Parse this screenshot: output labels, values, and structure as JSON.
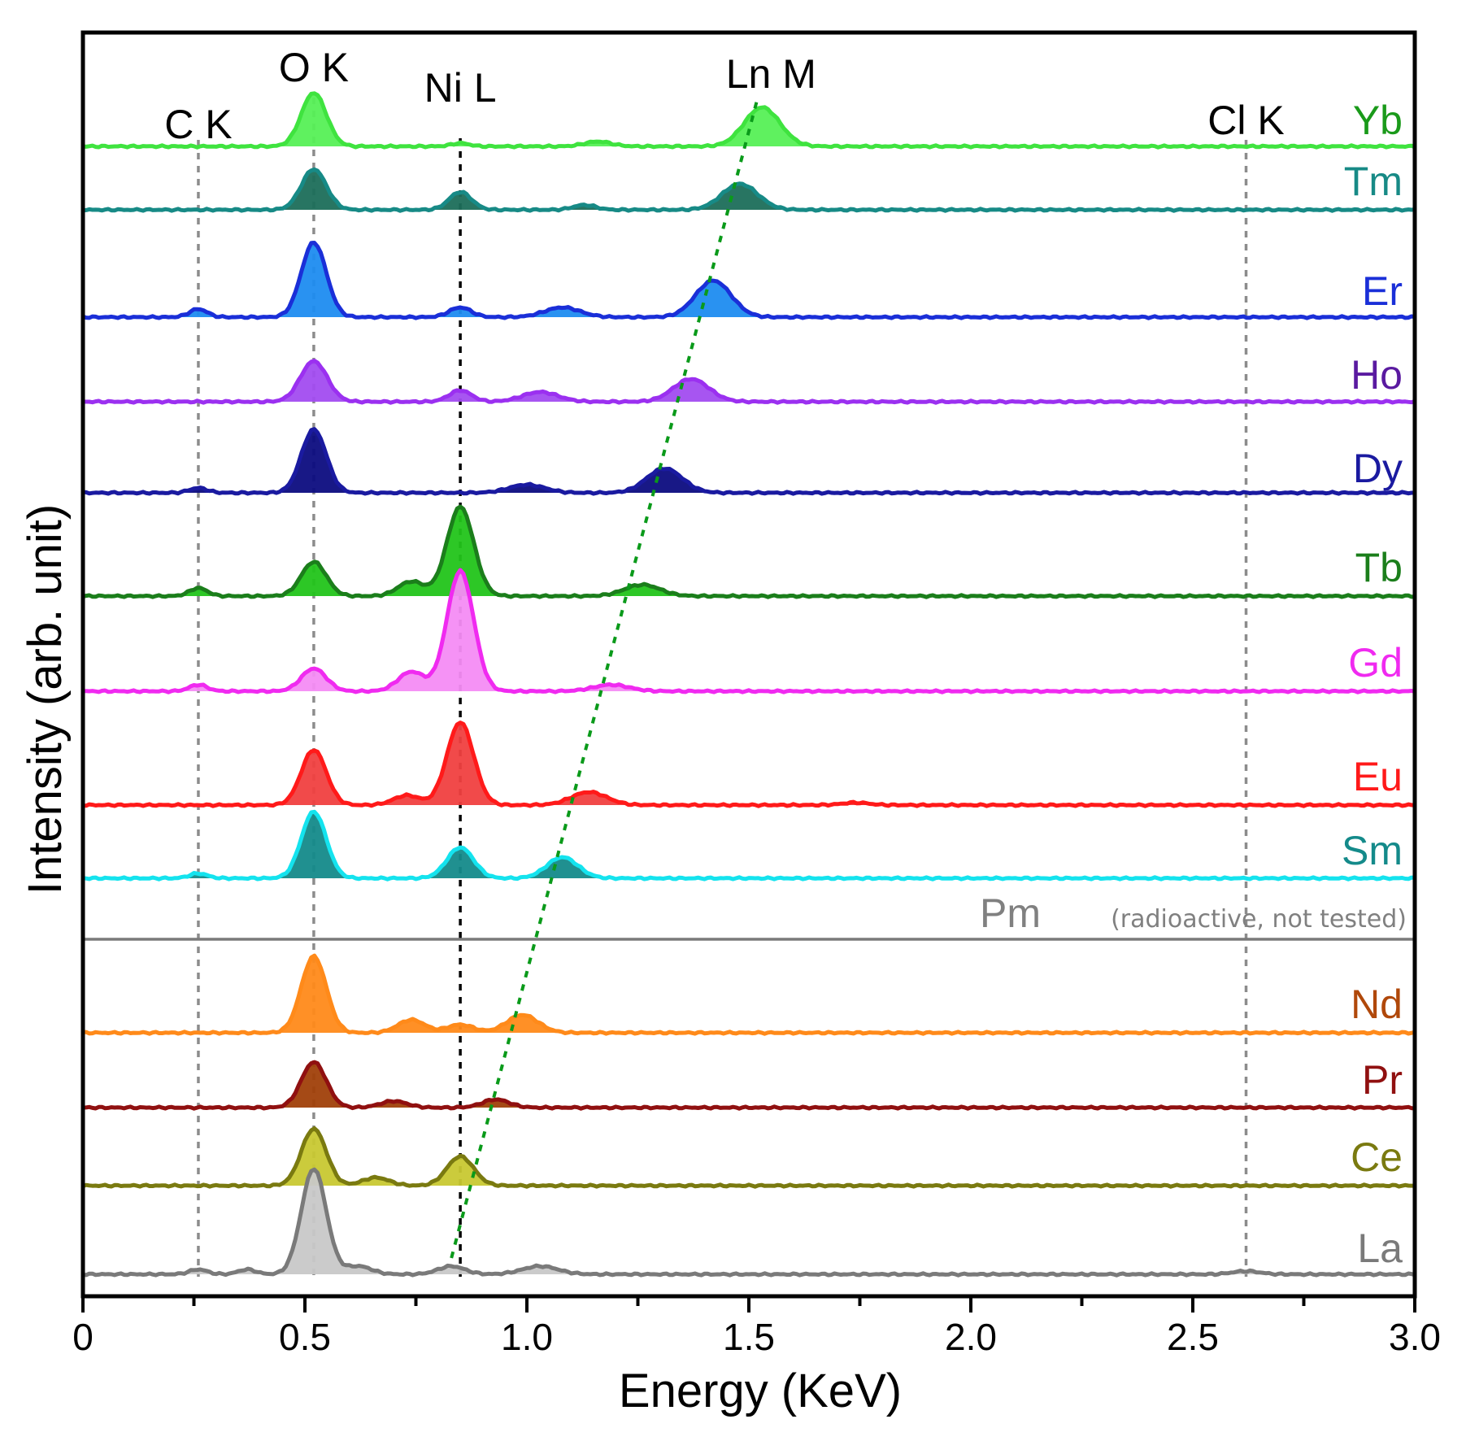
{
  "chart_data": {
    "type": "line",
    "title": "",
    "xlabel": "Energy (KeV)",
    "ylabel": "Intensity (arb. unit)",
    "xlim": [
      0,
      3.0
    ],
    "x_ticks": [
      "0",
      "0.5",
      "1.0",
      "1.5",
      "2.0",
      "2.5",
      "3.0"
    ],
    "x_tick_values": [
      0,
      0.5,
      1.0,
      1.5,
      2.0,
      2.5,
      3.0
    ],
    "reference_lines": [
      {
        "label": "C K",
        "energy": 0.26,
        "color": "#8c8c8c"
      },
      {
        "label": "O K",
        "energy": 0.52,
        "color": "#8c8c8c"
      },
      {
        "label": "Ni L",
        "energy": 0.85,
        "color": "#000000"
      },
      {
        "label": "Cl K",
        "energy": 2.62,
        "color": "#8c8c8c"
      }
    ],
    "ln_m_trend": {
      "label": "Ln M",
      "color": "#0a9a1a",
      "from": {
        "series": "La",
        "energy": 0.83
      },
      "to": {
        "series": "Yb",
        "energy": 1.52
      }
    },
    "series": [
      {
        "name": "Yb",
        "color": "#3fe33f",
        "fill": "#56f056",
        "label_color": "#1a9a1a",
        "baseline": 0,
        "peaks": [
          [
            0.52,
            66,
            0.028
          ],
          [
            0.85,
            4,
            0.02
          ],
          [
            1.16,
            6,
            0.03
          ],
          [
            1.53,
            48,
            0.04
          ]
        ]
      },
      {
        "name": "Tm",
        "color": "#178a86",
        "fill": "#1c6e5a",
        "label_color": "#178a86",
        "baseline": 0,
        "peaks": [
          [
            0.52,
            50,
            0.028
          ],
          [
            0.85,
            22,
            0.025
          ],
          [
            1.13,
            6,
            0.025
          ],
          [
            1.48,
            32,
            0.04
          ]
        ]
      },
      {
        "name": "Er",
        "color": "#1a2fd8",
        "fill": "#1e8cf0",
        "label_color": "#1a2fd8",
        "baseline": 0,
        "peaks": [
          [
            0.26,
            10,
            0.02
          ],
          [
            0.52,
            92,
            0.028
          ],
          [
            0.85,
            12,
            0.025
          ],
          [
            1.08,
            12,
            0.04
          ],
          [
            1.42,
            45,
            0.04
          ]
        ]
      },
      {
        "name": "Ho",
        "color": "#9b30f0",
        "fill": "#a24cf0",
        "label_color": "#5a1aa0",
        "baseline": 0,
        "peaks": [
          [
            0.52,
            50,
            0.03
          ],
          [
            0.85,
            14,
            0.025
          ],
          [
            1.03,
            12,
            0.04
          ],
          [
            1.37,
            28,
            0.04
          ]
        ]
      },
      {
        "name": "Dy",
        "color": "#1a1aa0",
        "fill": "#0c0c80",
        "label_color": "#1a1aa0",
        "baseline": 0,
        "peaks": [
          [
            0.26,
            6,
            0.02
          ],
          [
            0.52,
            78,
            0.028
          ],
          [
            1.0,
            10,
            0.04
          ],
          [
            1.31,
            30,
            0.04
          ]
        ]
      },
      {
        "name": "Tb",
        "color": "#1b7e1b",
        "fill": "#22c41a",
        "label_color": "#1b7e1b",
        "baseline": 0,
        "peaks": [
          [
            0.26,
            10,
            0.02
          ],
          [
            0.52,
            42,
            0.028
          ],
          [
            0.74,
            18,
            0.03
          ],
          [
            0.85,
            110,
            0.03
          ],
          [
            1.26,
            14,
            0.04
          ]
        ]
      },
      {
        "name": "Gd",
        "color": "#f02af0",
        "fill": "#f48cf4",
        "label_color": "#f02af0",
        "baseline": 0,
        "peaks": [
          [
            0.26,
            8,
            0.02
          ],
          [
            0.52,
            28,
            0.028
          ],
          [
            0.74,
            24,
            0.03
          ],
          [
            0.85,
            148,
            0.03
          ],
          [
            1.19,
            8,
            0.04
          ]
        ]
      },
      {
        "name": "Eu",
        "color": "#ff1a1a",
        "fill": "#f04040",
        "label_color": "#ff1a1a",
        "baseline": 0,
        "peaks": [
          [
            0.52,
            68,
            0.028
          ],
          [
            0.73,
            12,
            0.03
          ],
          [
            0.85,
            102,
            0.03
          ],
          [
            1.14,
            16,
            0.04
          ],
          [
            1.74,
            3,
            0.03
          ]
        ]
      },
      {
        "name": "Sm",
        "color": "#14e3ee",
        "fill": "#148a8a",
        "label_color": "#148a8a",
        "baseline": 0,
        "peaks": [
          [
            0.26,
            6,
            0.02
          ],
          [
            0.52,
            82,
            0.028
          ],
          [
            0.85,
            38,
            0.03
          ],
          [
            1.08,
            26,
            0.035
          ]
        ]
      },
      {
        "name": "Pm",
        "note": "(radioactive, not tested)",
        "color": "#7a7a7a",
        "fill": "none",
        "label_color": "#808080",
        "baseline": 0,
        "peaks": []
      },
      {
        "name": "Nd",
        "color": "#ff8a1a",
        "fill": "#ff8a1a",
        "label_color": "#b0480a",
        "baseline": 0,
        "peaks": [
          [
            0.52,
            94,
            0.028
          ],
          [
            0.74,
            16,
            0.03
          ],
          [
            0.85,
            10,
            0.03
          ],
          [
            0.99,
            22,
            0.035
          ]
        ]
      },
      {
        "name": "Pr",
        "color": "#901010",
        "fill": "#a0400a",
        "label_color": "#901010",
        "baseline": 0,
        "peaks": [
          [
            0.52,
            56,
            0.028
          ],
          [
            0.7,
            8,
            0.03
          ],
          [
            0.93,
            10,
            0.03
          ]
        ]
      },
      {
        "name": "Ce",
        "color": "#7a7a10",
        "fill": "#c8c832",
        "label_color": "#7a7a10",
        "baseline": 0,
        "peaks": [
          [
            0.52,
            70,
            0.028
          ],
          [
            0.66,
            10,
            0.03
          ],
          [
            0.85,
            36,
            0.03
          ]
        ]
      },
      {
        "name": "La",
        "color": "#7a7a7a",
        "fill": "#c8c8c8",
        "label_color": "#7a7a7a",
        "baseline": 0,
        "peaks": [
          [
            0.26,
            6,
            0.02
          ],
          [
            0.37,
            6,
            0.02
          ],
          [
            0.52,
            130,
            0.028
          ],
          [
            0.62,
            10,
            0.03
          ],
          [
            0.83,
            10,
            0.03
          ],
          [
            1.03,
            10,
            0.04
          ],
          [
            2.62,
            4,
            0.03
          ]
        ]
      }
    ]
  }
}
